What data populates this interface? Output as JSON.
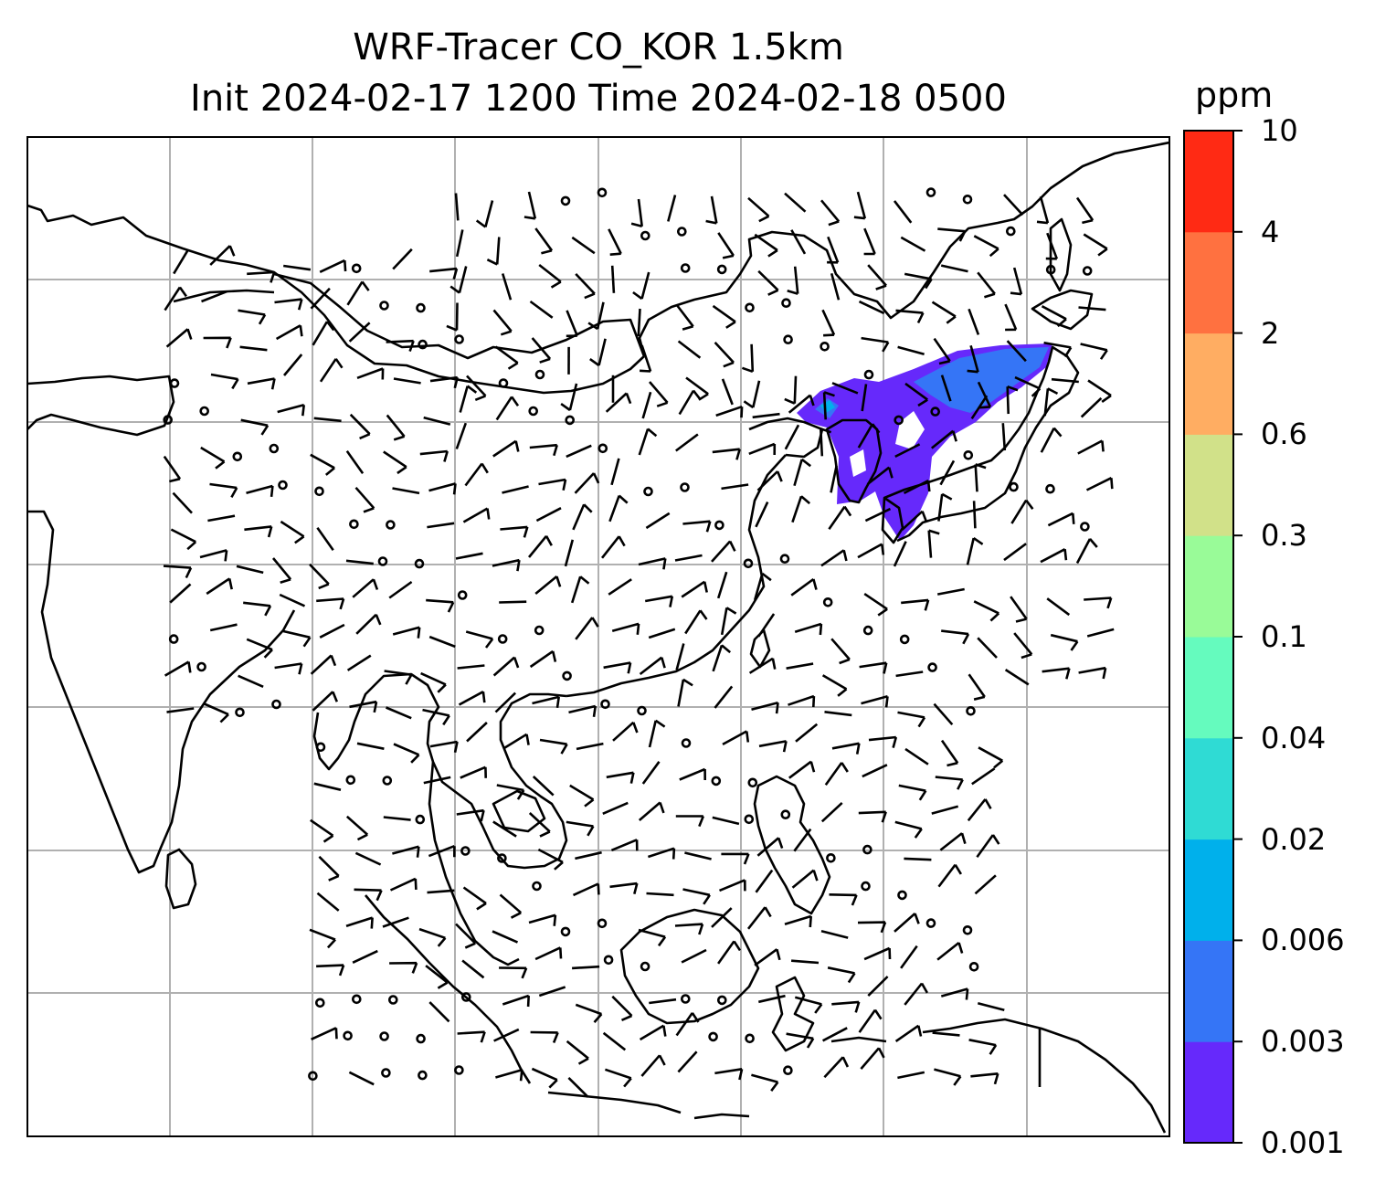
{
  "title": {
    "line1": "WRF-Tracer CO_KOR 1.5km",
    "line2": "Init 2024-02-17 1200 Time 2024-02-18 0500"
  },
  "colorbar": {
    "unit": "ppm",
    "ticks": [
      "0.001",
      "0.003",
      "0.006",
      "0.02",
      "0.04",
      "0.1",
      "0.3",
      "0.6",
      "2",
      "4",
      "10"
    ],
    "colors": [
      "#6629fb",
      "#3575f6",
      "#00b0eb",
      "#2fdbd4",
      "#65fbbe",
      "#99fb98",
      "#d1e189",
      "#ffad62",
      "#ff7140",
      "#ff2a14"
    ]
  },
  "map": {
    "grid": "on",
    "coastline_color": "#000000",
    "grid_color": "#b0b0b0",
    "plume_colors": [
      "#6629fb",
      "#3575f6",
      "#00b0eb"
    ]
  }
}
